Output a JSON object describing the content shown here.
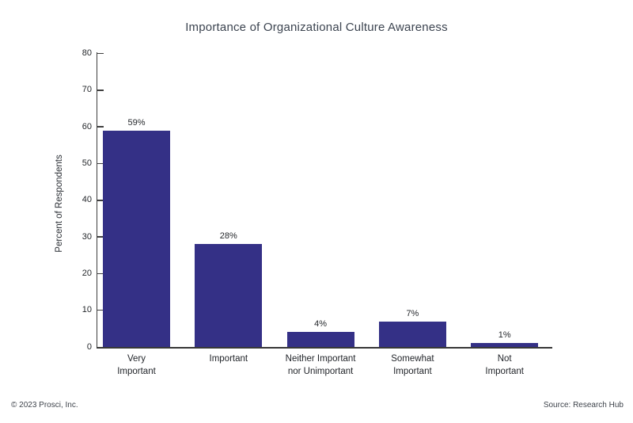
{
  "title": "Importance of Organizational Culture Awareness",
  "footer": {
    "copyright": "© 2023 Prosci, Inc.",
    "source": "Source: Research Hub"
  },
  "chart_data": {
    "type": "bar",
    "title": "Importance of Organizational Culture Awareness",
    "categories": [
      "Very Important",
      "Important",
      "Neither Important nor Unimportant",
      "Somewhat Important",
      "Not Important"
    ],
    "category_label_lines": [
      [
        "Very",
        "Important"
      ],
      [
        "Important"
      ],
      [
        "Neither Important",
        "nor Unimportant"
      ],
      [
        "Somewhat",
        "Important"
      ],
      [
        "Not",
        "Important"
      ]
    ],
    "values": [
      59,
      28,
      4,
      7,
      1
    ],
    "value_labels": [
      "59%",
      "28%",
      "4%",
      "7%",
      "1%"
    ],
    "xlabel": "",
    "ylabel": "Percent of Respondents",
    "ylim": [
      0,
      80
    ],
    "yticks": [
      0,
      10,
      20,
      30,
      40,
      50,
      60,
      70,
      80
    ],
    "grid": false,
    "legend": "none",
    "bar_color": "#343086"
  }
}
